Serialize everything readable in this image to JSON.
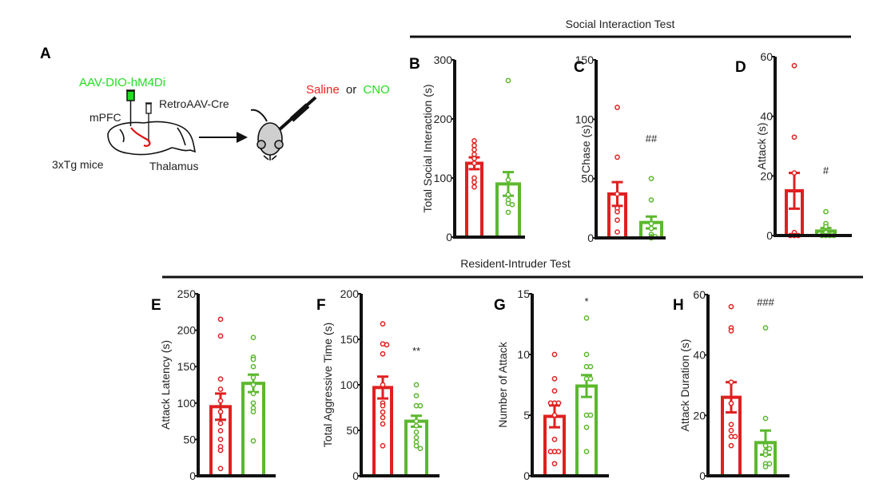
{
  "colors": {
    "saline": "#e02020",
    "cno": "#5cb82e",
    "axis": "#111111",
    "label_green": "#22dd22",
    "label_red": "#ee2222"
  },
  "panel_a": {
    "letter": "A",
    "virus1": "AAV-DIO-hM4Di",
    "virus2": "RetroAAV-Cre",
    "region1": "mPFC",
    "region2": "Thalamus",
    "mice": "3xTg mice",
    "treat_saline": "Saline",
    "treat_or": "or",
    "treat_cno": "CNO",
    "icons": [
      "brain-icon",
      "syringe-icon",
      "mouse-icon",
      "arrow-right-icon"
    ]
  },
  "section_titles": {
    "social": "Social Interaction Test",
    "resident": "Resident-Intruder Test"
  },
  "chart_data": [
    {
      "id": "B",
      "type": "bar",
      "letter": "B",
      "ylabel": "Total Social Interaction (s)",
      "ylim": [
        0,
        300
      ],
      "ticks": [
        0,
        100,
        200,
        300
      ],
      "sig": "",
      "series": [
        {
          "group": "saline",
          "mean": 125,
          "sem": 10,
          "points": [
            163,
            155,
            148,
            140,
            133,
            125,
            100,
            93,
            85
          ]
        },
        {
          "group": "cno",
          "mean": 90,
          "sem": 20,
          "points": [
            265,
            97,
            72,
            63,
            57,
            55,
            42
          ]
        }
      ]
    },
    {
      "id": "C",
      "type": "bar",
      "letter": "C",
      "ylabel": "Chase (s)",
      "ylim": [
        0,
        150
      ],
      "ticks": [
        0,
        50,
        100,
        150
      ],
      "sig": "##",
      "series": [
        {
          "group": "saline",
          "mean": 37,
          "sem": 10,
          "points": [
            110,
            68,
            37,
            25,
            22,
            15,
            5
          ]
        },
        {
          "group": "cno",
          "mean": 13,
          "sem": 5,
          "points": [
            50,
            32,
            12,
            8,
            3,
            1,
            0,
            1
          ]
        }
      ]
    },
    {
      "id": "D",
      "type": "bar",
      "letter": "D",
      "ylabel": "Attack (s)",
      "ylim": [
        0,
        60
      ],
      "ticks": [
        0,
        20,
        40,
        60
      ],
      "sig": "#",
      "series": [
        {
          "group": "saline",
          "mean": 15,
          "sem": 6,
          "points": [
            57,
            33,
            21,
            1,
            0,
            0,
            0
          ]
        },
        {
          "group": "cno",
          "mean": 1.5,
          "sem": 1,
          "points": [
            8,
            4,
            3,
            1,
            0,
            0,
            0,
            0
          ]
        }
      ]
    },
    {
      "id": "E",
      "type": "bar",
      "letter": "E",
      "ylabel": "Attack Latency (s)",
      "ylim": [
        0,
        250
      ],
      "ticks": [
        0,
        50,
        100,
        150,
        200,
        250
      ],
      "sig": "",
      "series": [
        {
          "group": "saline",
          "mean": 95,
          "sem": 18,
          "points": [
            215,
            192,
            133,
            119,
            103,
            88,
            72,
            62,
            50,
            40,
            35,
            10
          ]
        },
        {
          "group": "cno",
          "mean": 127,
          "sem": 12,
          "points": [
            190,
            163,
            160,
            150,
            135,
            125,
            113,
            100,
            93,
            88,
            48
          ]
        }
      ]
    },
    {
      "id": "F",
      "type": "bar",
      "letter": "F",
      "ylabel": "Total Aggressive Time (s)",
      "ylim": [
        0,
        200
      ],
      "ticks": [
        0,
        50,
        100,
        150,
        200
      ],
      "sig": "**",
      "series": [
        {
          "group": "saline",
          "mean": 97,
          "sem": 12,
          "points": [
            167,
            145,
            144,
            134,
            100,
            80,
            77,
            70,
            64,
            57,
            33
          ]
        },
        {
          "group": "cno",
          "mean": 60,
          "sem": 6,
          "points": [
            100,
            88,
            77,
            77,
            60,
            55,
            48,
            42,
            37,
            33,
            30
          ]
        }
      ]
    },
    {
      "id": "G",
      "type": "bar",
      "letter": "G",
      "ylabel": "Number of Attack",
      "ylim": [
        0,
        15
      ],
      "ticks": [
        0,
        5,
        10,
        15
      ],
      "sig": "*",
      "series": [
        {
          "group": "saline",
          "mean": 4.9,
          "sem": 0.9,
          "points": [
            10,
            8,
            7,
            6,
            6,
            6,
            5,
            3,
            2,
            2,
            2,
            1
          ]
        },
        {
          "group": "cno",
          "mean": 7.4,
          "sem": 0.9,
          "points": [
            13,
            10,
            9,
            9,
            8,
            8,
            5,
            5,
            4,
            2
          ]
        }
      ]
    },
    {
      "id": "H",
      "type": "bar",
      "letter": "H",
      "ylabel": "Attack Duration (s)",
      "ylim": [
        0,
        60
      ],
      "ticks": [
        0,
        20,
        40,
        60
      ],
      "sig": "###",
      "series": [
        {
          "group": "saline",
          "mean": 26,
          "sem": 5,
          "points": [
            56,
            49,
            48,
            31,
            24,
            17,
            15,
            13,
            13,
            10
          ]
        },
        {
          "group": "cno",
          "mean": 11,
          "sem": 4,
          "points": [
            49,
            19,
            10,
            9,
            8,
            7,
            4,
            4,
            3
          ]
        }
      ]
    }
  ]
}
